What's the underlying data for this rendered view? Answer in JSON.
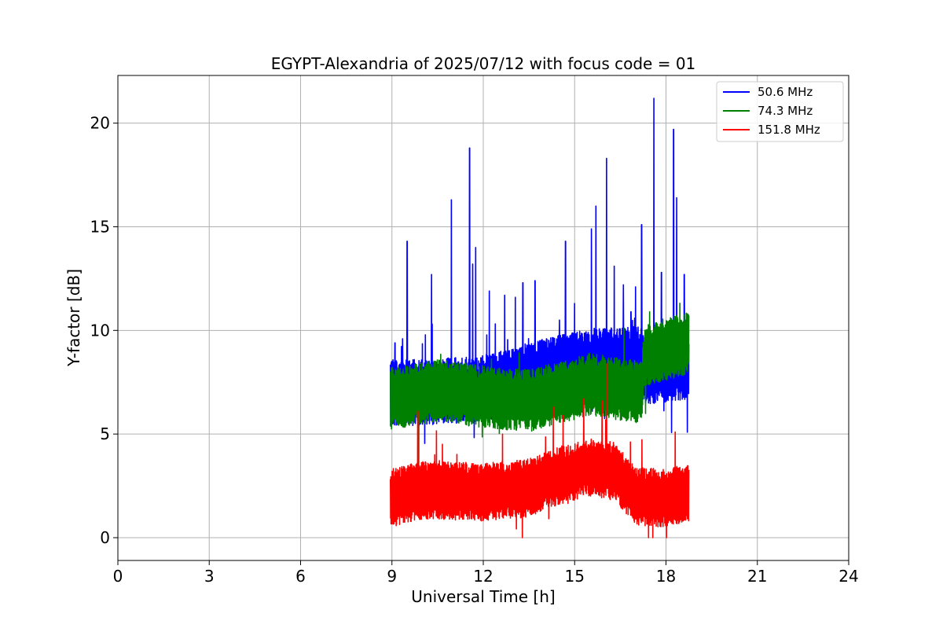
{
  "chart_data": {
    "type": "line",
    "title": "EGYPT-Alexandria of 2025/07/12 with focus code = 01",
    "xlabel": "Universal Time [h]",
    "ylabel": "Y-factor [dB]",
    "xlim": [
      0,
      24
    ],
    "ylim": [
      -1.1,
      22.3
    ],
    "xticks": [
      0,
      3,
      6,
      9,
      12,
      15,
      18,
      21,
      24
    ],
    "yticks": [
      0,
      5,
      10,
      15,
      20
    ],
    "grid": true,
    "legend_position": "top-right",
    "series": [
      {
        "name": " 50.6 MHz",
        "color": "#0000ff",
        "x_range": [
          8.95,
          18.75
        ],
        "baseline": [
          [
            8.95,
            7.0
          ],
          [
            10.0,
            7.0
          ],
          [
            12.0,
            7.2
          ],
          [
            14.0,
            8.0
          ],
          [
            15.5,
            8.5
          ],
          [
            17.2,
            8.6
          ],
          [
            17.3,
            8.0
          ],
          [
            18.75,
            8.3
          ]
        ],
        "band_halfwidth": 1.6,
        "peaks": [
          [
            9.5,
            14.3
          ],
          [
            10.3,
            12.7
          ],
          [
            10.95,
            16.3
          ],
          [
            11.55,
            18.8
          ],
          [
            11.75,
            14.0
          ],
          [
            11.65,
            13.2
          ],
          [
            12.2,
            11.9
          ],
          [
            13.3,
            12.3
          ],
          [
            13.7,
            12.4
          ],
          [
            14.7,
            14.3
          ],
          [
            15.55,
            14.9
          ],
          [
            15.7,
            16.0
          ],
          [
            16.05,
            18.3
          ],
          [
            16.6,
            12.2
          ],
          [
            17.2,
            15.1
          ],
          [
            17.6,
            21.2
          ],
          [
            17.85,
            12.8
          ],
          [
            18.25,
            19.7
          ],
          [
            18.35,
            16.4
          ],
          [
            18.6,
            12.7
          ],
          [
            9.1,
            9.4
          ],
          [
            9.35,
            9.6
          ],
          [
            12.7,
            11.7
          ],
          [
            13.05,
            11.6
          ],
          [
            14.5,
            10.5
          ],
          [
            15.0,
            11.3
          ],
          [
            16.3,
            13.1
          ],
          [
            16.85,
            10.9
          ],
          [
            17.0,
            12.1
          ]
        ]
      },
      {
        "name": " 74.3 MHz",
        "color": "#008000",
        "x_range": [
          8.95,
          18.75
        ],
        "baseline": [
          [
            8.95,
            6.7
          ],
          [
            10.5,
            7.1
          ],
          [
            12.0,
            6.8
          ],
          [
            13.5,
            6.6
          ],
          [
            15.5,
            7.4
          ],
          [
            17.2,
            7.0
          ],
          [
            17.3,
            8.8
          ],
          [
            18.75,
            9.4
          ]
        ],
        "band_halfwidth": 1.5,
        "peaks": []
      },
      {
        "name": " 151.8 MHz",
        "color": "#ff0000",
        "x_range": [
          8.95,
          18.75
        ],
        "baseline": [
          [
            8.95,
            1.9
          ],
          [
            10.0,
            2.3
          ],
          [
            12.0,
            2.2
          ],
          [
            13.5,
            2.4
          ],
          [
            14.5,
            3.0
          ],
          [
            15.5,
            3.4
          ],
          [
            16.3,
            3.2
          ],
          [
            17.0,
            2.0
          ],
          [
            18.0,
            1.9
          ],
          [
            18.75,
            2.2
          ]
        ],
        "band_halfwidth": 1.4,
        "peaks": [
          [
            16.05,
            8.4
          ],
          [
            9.85,
            6.1
          ],
          [
            14.3,
            6.3
          ],
          [
            15.3,
            6.7
          ],
          [
            15.9,
            6.6
          ],
          [
            18.3,
            5.1
          ]
        ]
      }
    ]
  }
}
